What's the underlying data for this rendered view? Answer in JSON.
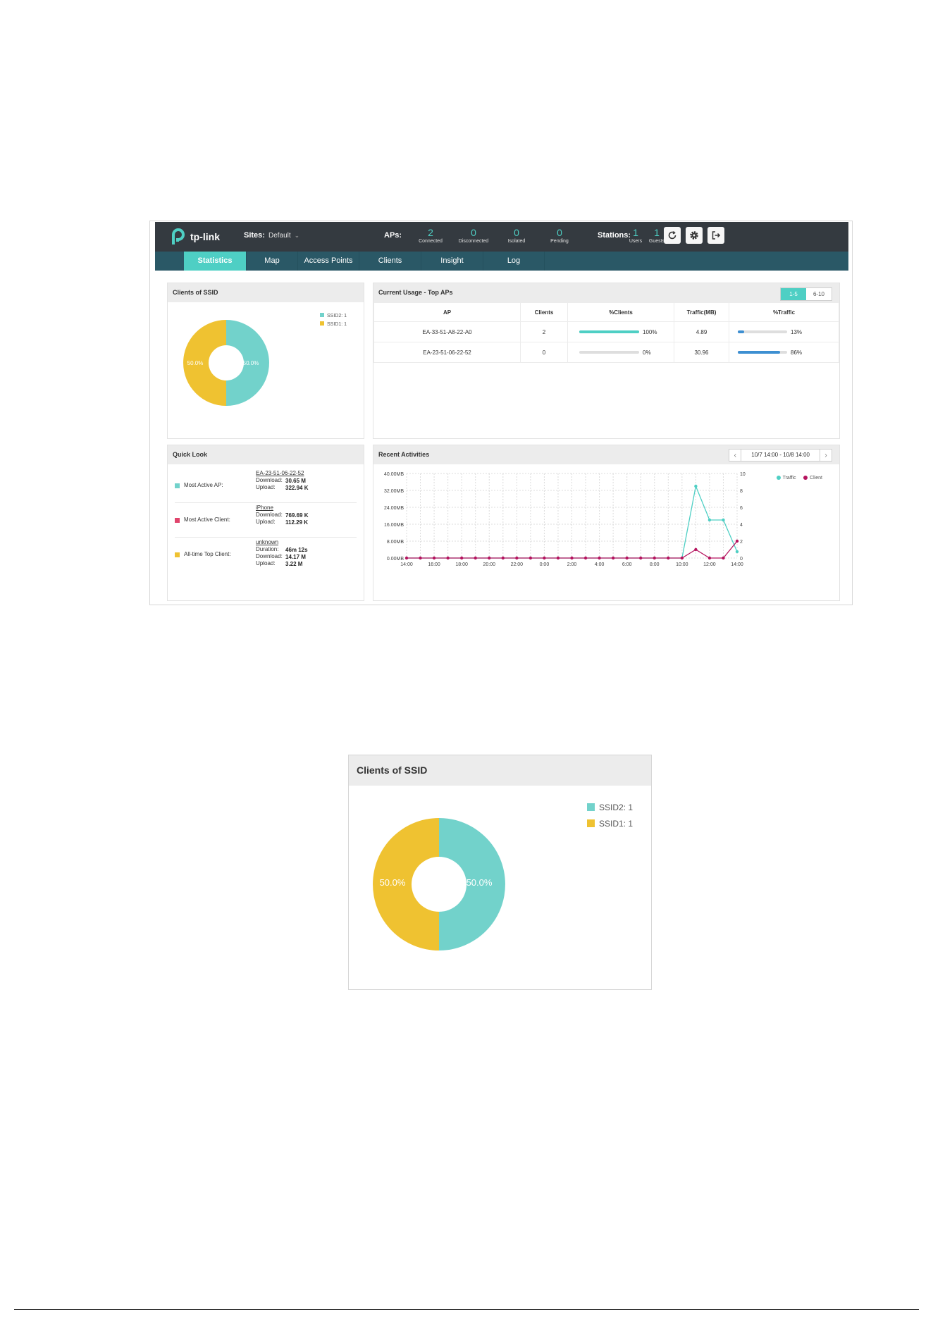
{
  "header": {
    "logo_text": "tp-link",
    "sites_label": "Sites:",
    "sites_value": "Default",
    "aps_label": "APs:",
    "aps_stats": [
      {
        "value": "2",
        "label": "Connected"
      },
      {
        "value": "0",
        "label": "Disconnected"
      },
      {
        "value": "0",
        "label": "Isolated"
      },
      {
        "value": "0",
        "label": "Pending"
      }
    ],
    "stations_label": "Stations:",
    "station_stats": [
      {
        "value": "1",
        "label": "Users"
      },
      {
        "value": "1",
        "label": "Guests"
      }
    ]
  },
  "nav": {
    "tabs": [
      "Statistics",
      "Map",
      "Access Points",
      "Clients",
      "Insight",
      "Log"
    ],
    "active": "Statistics"
  },
  "clients_ssid": {
    "title": "Clients of SSID",
    "legend": [
      "SSID2: 1",
      "SSID1: 1"
    ],
    "slice_labels": [
      "50.0%",
      "50.0%"
    ],
    "colors": {
      "ssid2": "#72d2cb",
      "ssid1": "#efc231"
    }
  },
  "top_aps": {
    "title": "Current Usage - Top APs",
    "pages": [
      "1-5",
      "6-10"
    ],
    "columns": [
      "AP",
      "Clients",
      "%Clients",
      "Traffic(MB)",
      "%Traffic"
    ],
    "rows": [
      {
        "ap": "EA-33-51-A8-22-A0",
        "clients": "2",
        "pct_clients_label": "100%",
        "pct_clients": 100,
        "traffic": "4.89",
        "pct_traffic_label": "13%",
        "pct_traffic": 13
      },
      {
        "ap": "EA-23-51-06-22-52",
        "clients": "0",
        "pct_clients_label": "0%",
        "pct_clients": 0,
        "traffic": "30.96",
        "pct_traffic_label": "86%",
        "pct_traffic": 86
      }
    ]
  },
  "quick_look": {
    "title": "Quick Look",
    "rows": [
      {
        "title": "Most Active AP:",
        "name": "EA-23-51-06-22-52",
        "kv": [
          [
            "Download:",
            "30.65 M"
          ],
          [
            "Upload:",
            "322.94 K"
          ]
        ],
        "color": "#72d2cb"
      },
      {
        "title": "Most Active Client:",
        "name": "iPhone",
        "kv": [
          [
            "Download:",
            "769.69 K"
          ],
          [
            "Upload:",
            "112.29 K"
          ]
        ],
        "color": "#e0446c"
      },
      {
        "title": "All-time Top Client:",
        "name": "unknown",
        "kv": [
          [
            "Duration:",
            "46m 12s"
          ],
          [
            "Download:",
            "14.17 M"
          ],
          [
            "Upload:",
            "3.22 M"
          ]
        ],
        "color": "#efc231"
      }
    ]
  },
  "recent": {
    "title": "Recent Activities",
    "date_range": "10/7 14:00 - 10/8 14:00",
    "prev": "‹",
    "next": "›"
  },
  "chart_data": {
    "type": "line",
    "x_tick_labels": [
      "14:00",
      "16:00",
      "18:00",
      "20:00",
      "22:00",
      "0:00",
      "2:00",
      "4:00",
      "6:00",
      "8:00",
      "10:00",
      "12:00",
      "14:00"
    ],
    "y_left_ticks": [
      "0.00MB",
      "8.00MB",
      "16.00MB",
      "24.00MB",
      "32.00MB",
      "40.00MB"
    ],
    "y_right_ticks": [
      "0",
      "2",
      "4",
      "6",
      "8",
      "10"
    ],
    "ylim_left": [
      0,
      40
    ],
    "ylim_right": [
      0,
      10
    ],
    "legend_placement": "top-right",
    "grid": true,
    "series": [
      {
        "name": "Traffic",
        "color": "#4ecfc4",
        "axis": "left",
        "values": [
          0,
          0,
          0,
          0,
          0,
          0,
          0,
          0,
          0,
          0,
          0,
          0,
          0,
          0,
          0,
          0,
          0,
          0,
          0,
          0,
          0,
          34,
          18,
          18,
          3
        ]
      },
      {
        "name": "Client",
        "color": "#b5135e",
        "axis": "right",
        "values": [
          0,
          0,
          0,
          0,
          0,
          0,
          0,
          0,
          0,
          0,
          0,
          0,
          0,
          0,
          0,
          0,
          0,
          0,
          0,
          0,
          0,
          1,
          0,
          0,
          2
        ]
      }
    ]
  }
}
